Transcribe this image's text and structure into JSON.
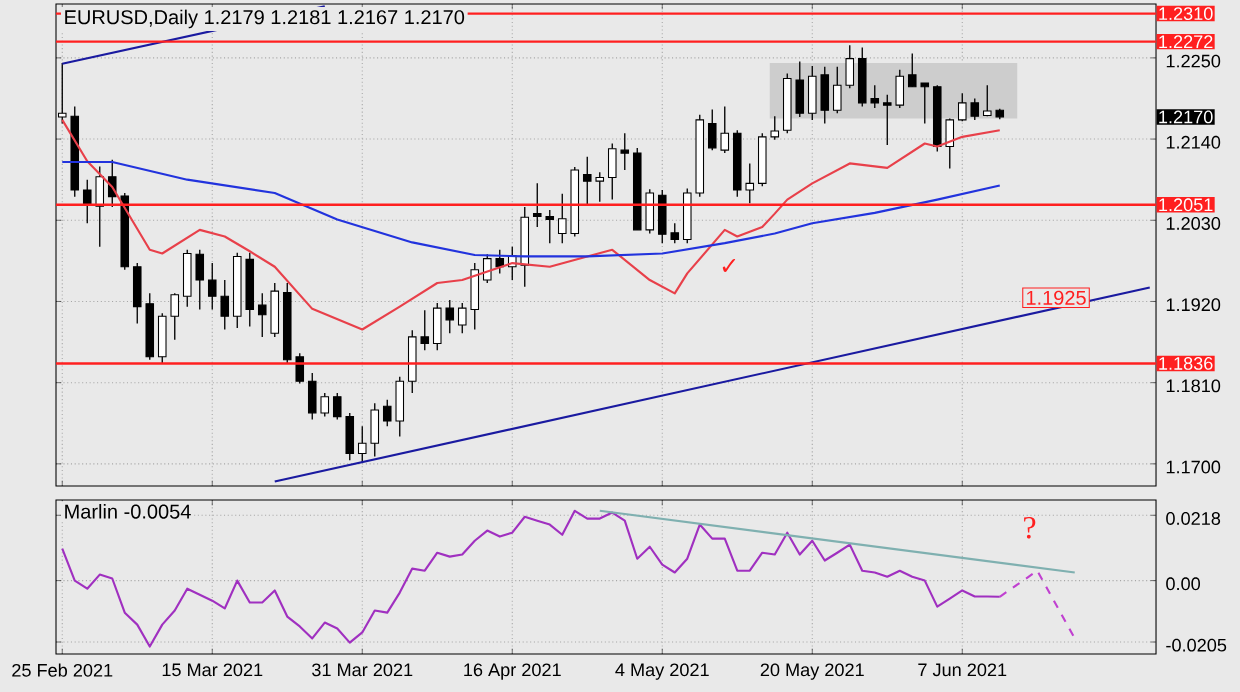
{
  "chart_data": [
    {
      "type": "candlestick",
      "title": "EURUSD,Daily  1.2179 1.2181 1.2167 1.2170",
      "categories": [
        null,
        null,
        null,
        null,
        null,
        null,
        null,
        null,
        null,
        null,
        null,
        null,
        null,
        null,
        null,
        null,
        null,
        null,
        null,
        null,
        null,
        null,
        null,
        null,
        null,
        null,
        null,
        null,
        null,
        null,
        null,
        null,
        null,
        null,
        null,
        null,
        null,
        null,
        null,
        null,
        null,
        null,
        null,
        null,
        null,
        null,
        null,
        null,
        null,
        null,
        null,
        null,
        null,
        null,
        null,
        null,
        null,
        null,
        null,
        null,
        null,
        null,
        null,
        null,
        null,
        null,
        null,
        null,
        null,
        null,
        null,
        null,
        null,
        null,
        null,
        null,
        null,
        null,
        null,
        null,
        null,
        null,
        null,
        null,
        null,
        null,
        null,
        null
      ],
      "ohlc": [
        [
          1.217,
          1.2243,
          1.2161,
          1.2175
        ],
        [
          1.2171,
          1.2184,
          1.2062,
          1.2071
        ],
        [
          1.2071,
          1.2085,
          1.2026,
          1.205
        ],
        [
          1.2049,
          1.2103,
          1.1994,
          1.2089
        ],
        [
          1.2089,
          1.2112,
          1.2048,
          1.2062
        ],
        [
          1.2063,
          1.2067,
          1.1963,
          1.1967
        ],
        [
          1.1967,
          1.1972,
          1.189,
          1.1913
        ],
        [
          1.1917,
          1.1931,
          1.1841,
          1.1845
        ],
        [
          1.1845,
          1.1904,
          1.1836,
          1.19
        ],
        [
          1.19,
          1.1931,
          1.1868,
          1.1929
        ],
        [
          1.1927,
          1.199,
          1.1913,
          1.1985
        ],
        [
          1.1984,
          1.199,
          1.1909,
          1.1949
        ],
        [
          1.1949,
          1.1972,
          1.1909,
          1.1927
        ],
        [
          1.1927,
          1.1949,
          1.1882,
          1.19
        ],
        [
          1.19,
          1.1986,
          1.1884,
          1.1981
        ],
        [
          1.1977,
          1.1986,
          1.1886,
          1.1909
        ],
        [
          1.1915,
          1.1931,
          1.1872,
          1.1902
        ],
        [
          1.1877,
          1.1945,
          1.1872,
          1.1934
        ],
        [
          1.1932,
          1.1945,
          1.1836,
          1.1841
        ],
        [
          1.1845,
          1.185,
          1.1809,
          1.1812
        ],
        [
          1.1812,
          1.1823,
          1.176,
          1.1769
        ],
        [
          1.1769,
          1.1796,
          1.1764,
          1.1791
        ],
        [
          1.1791,
          1.1796,
          1.176,
          1.1764
        ],
        [
          1.1764,
          1.1769,
          1.1705,
          1.1714
        ],
        [
          1.1714,
          1.1751,
          1.1701,
          1.1728
        ],
        [
          1.1728,
          1.1782,
          1.171,
          1.1773
        ],
        [
          1.1778,
          1.1787,
          1.1751,
          1.1758
        ],
        [
          1.1758,
          1.1818,
          1.1737,
          1.1812
        ],
        [
          1.1812,
          1.1881,
          1.1796,
          1.1872
        ],
        [
          1.1872,
          1.1908,
          1.1854,
          1.1863
        ],
        [
          1.1863,
          1.1918,
          1.1854,
          1.1911
        ],
        [
          1.1911,
          1.1922,
          1.1877,
          1.1895
        ],
        [
          1.1888,
          1.1918,
          1.1877,
          1.1911
        ],
        [
          1.1909,
          1.1972,
          1.1882,
          1.1963
        ],
        [
          1.1949,
          1.1984,
          1.1945,
          1.1978
        ],
        [
          1.1978,
          1.199,
          1.1958,
          1.1967
        ],
        [
          1.1967,
          1.1994,
          1.1949,
          1.1982
        ],
        [
          1.1969,
          1.2048,
          1.194,
          1.2034
        ],
        [
          1.2039,
          1.208,
          1.2021,
          1.2035
        ],
        [
          1.2035,
          1.2044,
          1.1999,
          1.2031
        ],
        [
          1.2012,
          1.2066,
          1.1999,
          1.2032
        ],
        [
          1.2012,
          1.2102,
          1.2008,
          1.2098
        ],
        [
          1.2092,
          1.2116,
          1.205,
          1.2083
        ],
        [
          1.2083,
          1.2095,
          1.2055,
          1.2088
        ],
        [
          1.2088,
          1.2134,
          1.2058,
          1.2127
        ],
        [
          1.2125,
          1.2148,
          1.2098,
          1.2121
        ],
        [
          1.2121,
          1.2128,
          1.2017,
          1.2017
        ],
        [
          1.2017,
          1.2072,
          1.2012,
          1.2067
        ],
        [
          1.2064,
          1.2071,
          1.1999,
          1.2011
        ],
        [
          1.2013,
          1.2026,
          1.1999,
          1.2004
        ],
        [
          1.2004,
          1.2073,
          1.1999,
          1.2067
        ],
        [
          1.2067,
          1.2173,
          1.2062,
          1.2166
        ],
        [
          1.2161,
          1.218,
          1.2125,
          1.2128
        ],
        [
          1.2125,
          1.2184,
          1.2121,
          1.2148
        ],
        [
          1.2148,
          1.2152,
          1.2062,
          1.2071
        ],
        [
          1.2071,
          1.2107,
          1.2053,
          1.208
        ],
        [
          1.208,
          1.2148,
          1.2076,
          1.2143
        ],
        [
          1.2143,
          1.2171,
          1.2139,
          1.2151
        ],
        [
          1.2152,
          1.2229,
          1.2148,
          1.2222
        ],
        [
          1.222,
          1.2245,
          1.217,
          1.2175
        ],
        [
          1.2175,
          1.2239,
          1.2166,
          1.2225
        ],
        [
          1.2227,
          1.2238,
          1.2161,
          1.2179
        ],
        [
          1.2179,
          1.2238,
          1.2175,
          1.2213
        ],
        [
          1.2213,
          1.2267,
          1.2209,
          1.2249
        ],
        [
          1.2249,
          1.2264,
          1.2184,
          1.2189
        ],
        [
          1.2195,
          1.2213,
          1.2182,
          1.2189
        ],
        [
          1.2189,
          1.22,
          1.2132,
          1.2186
        ],
        [
          1.2186,
          1.2234,
          1.2182,
          1.2225
        ],
        [
          1.2227,
          1.2256,
          1.2211,
          1.2211
        ],
        [
          1.2216,
          1.2216,
          1.2161,
          1.2211
        ],
        [
          1.2211,
          1.2213,
          1.2123,
          1.213
        ],
        [
          1.213,
          1.2168,
          1.21,
          1.2166
        ],
        [
          1.2166,
          1.2202,
          1.2164,
          1.2189
        ],
        [
          1.2189,
          1.2195,
          1.2166,
          1.2171
        ],
        [
          1.2172,
          1.2213,
          1.2171,
          1.2178
        ],
        [
          1.2179,
          1.2181,
          1.2167,
          1.217
        ],
        null,
        null,
        null,
        null,
        null,
        null,
        null,
        null,
        null,
        null,
        null,
        null
      ],
      "series": [
        {
          "type": "line",
          "color": "#e8404a",
          "values": [
            1.2166,
            null,
            1.211,
            null,
            1.2075,
            null,
            null,
            1.199,
            1.1985,
            null,
            null,
            1.2017,
            null,
            1.2008,
            null,
            1.1988,
            null,
            1.1967,
            null,
            null,
            1.191,
            null,
            null,
            null,
            1.1882,
            null,
            null,
            1.1913,
            null,
            null,
            1.1945,
            null,
            1.1949,
            null,
            null,
            null,
            1.1972,
            null,
            null,
            1.1967,
            null,
            null,
            1.1981,
            null,
            1.199,
            null,
            null,
            1.1949,
            null,
            1.1931,
            1.1958,
            null,
            null,
            1.2017,
            1.2008,
            null,
            1.2021,
            1.2039,
            1.2058,
            null,
            1.208,
            null,
            null,
            1.2107,
            null,
            null,
            1.2101,
            null,
            null,
            1.2134,
            1.213,
            null,
            1.2143,
            null,
            null,
            1.2152,
            null,
            null,
            null,
            null,
            null,
            null,
            null,
            null,
            null,
            null,
            null,
            null
          ]
        },
        {
          "type": "line",
          "color": "#2233dd",
          "values": [
            1.2109,
            null,
            null,
            null,
            1.2109,
            null,
            null,
            null,
            null,
            null,
            1.2085,
            null,
            null,
            null,
            null,
            null,
            null,
            1.2067,
            null,
            null,
            null,
            null,
            1.2031,
            null,
            null,
            null,
            null,
            null,
            1.2,
            null,
            null,
            null,
            null,
            1.1983,
            null,
            null,
            null,
            1.1981,
            null,
            null,
            null,
            null,
            1.1981,
            null,
            null,
            null,
            null,
            null,
            1.1985,
            null,
            null,
            null,
            null,
            1.1999,
            null,
            null,
            null,
            1.2012,
            null,
            null,
            1.2026,
            null,
            null,
            null,
            null,
            1.204,
            null,
            null,
            null,
            null,
            1.2058,
            null,
            null,
            null,
            null,
            1.2077,
            null,
            null,
            null,
            null,
            null,
            null,
            null,
            null,
            null,
            null,
            null,
            null
          ]
        },
        {
          "type": "line",
          "color": "#1a1aa0",
          "values": [
            null,
            null,
            null,
            null,
            null,
            null,
            null,
            null,
            null,
            null,
            null,
            null,
            null,
            null,
            null,
            null,
            null,
            1.1676,
            null,
            null,
            null,
            null,
            null,
            null,
            null,
            null,
            null,
            null,
            null,
            null,
            null,
            null,
            null,
            null,
            null,
            null,
            null,
            null,
            null,
            null,
            null,
            null,
            null,
            null,
            null,
            null,
            null,
            null,
            null,
            null,
            null,
            null,
            null,
            null,
            null,
            null,
            null,
            null,
            null,
            null,
            null,
            null,
            null,
            null,
            null,
            null,
            null,
            null,
            null,
            null,
            null,
            null,
            null,
            null,
            null,
            null,
            null,
            null,
            null,
            null,
            null,
            null,
            null,
            null,
            null,
            null,
            null,
            1.1939
          ]
        },
        {
          "type": "line",
          "color": "#1a1aa0",
          "values": [
            1.2242,
            null,
            null,
            null,
            null,
            null,
            null,
            null,
            null,
            null,
            null,
            null,
            null,
            null,
            null,
            null,
            null,
            null,
            null,
            null,
            null,
            1.232,
            null,
            null,
            null,
            null,
            null,
            null,
            null,
            null,
            null,
            null,
            null,
            null,
            null,
            null,
            null,
            null,
            null,
            null,
            null,
            null,
            null,
            null,
            null,
            null,
            null,
            null,
            null,
            null,
            null,
            null,
            null,
            null,
            null,
            null,
            null,
            null,
            null,
            null,
            null,
            null,
            null,
            null,
            null,
            null,
            null,
            null,
            null,
            null,
            null,
            null,
            null,
            null,
            null,
            null,
            null,
            null,
            null,
            null,
            null,
            null,
            null,
            null,
            null,
            null,
            null,
            null
          ]
        }
      ],
      "ylim": [
        1.167,
        1.2323
      ],
      "yticks": [
        {
          "value": 1.225,
          "label": "1.2250"
        },
        {
          "value": 1.214,
          "label": "1.2140"
        },
        {
          "value": 1.203,
          "label": "1.2030"
        },
        {
          "value": 1.192,
          "label": "1.1920"
        },
        {
          "value": 1.181,
          "label": "1.1810"
        },
        {
          "value": 1.17,
          "label": "1.1700"
        }
      ],
      "bands": [
        {
          "axis": "y",
          "from": 1.2168,
          "to": 1.2243,
          "color": "#cdcdcd"
        }
      ],
      "ref_lines": [
        {
          "axis": "y",
          "value": 1.231,
          "label": "1.2310",
          "color": "#ff2020"
        },
        {
          "axis": "y",
          "value": 1.2272,
          "label": "1.2272",
          "color": "#ff2020"
        },
        {
          "axis": "y",
          "value": 1.2051,
          "label": "1.2051",
          "color": "#ff2020"
        },
        {
          "axis": "y",
          "value": 1.1836,
          "label": "1.1836",
          "color": "#ff2020"
        }
      ],
      "annotations": [
        "1.2170",
        {
          "text": "1.1925",
          "y": 1.1925
        },
        "✓"
      ],
      "grid": true,
      "tick_labels": "y"
    },
    {
      "type": "line",
      "title": "Marlin -0.0054",
      "categories": [
        "25 Feb 2021",
        null,
        null,
        null,
        null,
        null,
        null,
        null,
        null,
        null,
        null,
        null,
        "15 Mar 2021",
        null,
        null,
        null,
        null,
        null,
        null,
        null,
        null,
        null,
        null,
        null,
        "31 Mar 2021",
        null,
        null,
        null,
        null,
        null,
        null,
        null,
        null,
        null,
        null,
        null,
        "16 Apr 2021",
        null,
        null,
        null,
        null,
        null,
        null,
        null,
        null,
        null,
        null,
        null,
        "4 May 2021",
        null,
        null,
        null,
        null,
        null,
        null,
        null,
        null,
        null,
        null,
        null,
        "20 May 2021",
        null,
        null,
        null,
        null,
        null,
        null,
        null,
        null,
        null,
        null,
        null,
        "7 Jun 2021",
        null,
        null,
        null,
        null,
        null,
        null,
        null,
        null,
        null,
        null,
        null,
        null,
        null,
        null,
        null
      ],
      "series": [
        {
          "color": "#a030c0",
          "values": [
            0.0107,
            0.0,
            -0.0027,
            0.002,
            0.0007,
            -0.0107,
            -0.0147,
            -0.022,
            -0.0147,
            -0.01,
            -0.0027,
            -0.0047,
            -0.0067,
            -0.0093,
            0.0,
            -0.0073,
            -0.0073,
            -0.0033,
            -0.012,
            -0.0153,
            -0.0193,
            -0.014,
            -0.016,
            -0.0207,
            -0.0173,
            -0.01,
            -0.0107,
            -0.004,
            0.004,
            0.0033,
            0.0093,
            0.008,
            0.0087,
            0.0133,
            0.0167,
            0.0147,
            0.016,
            0.0213,
            0.02,
            0.0187,
            0.0153,
            0.0233,
            0.0207,
            0.0207,
            0.0227,
            0.02,
            0.0073,
            0.0113,
            0.0053,
            0.0027,
            0.0073,
            0.0187,
            0.014,
            0.014,
            0.0033,
            0.0033,
            0.0093,
            0.0087,
            0.016,
            0.0087,
            0.0133,
            0.0067,
            0.0093,
            0.012,
            0.0033,
            0.0027,
            0.0013,
            0.0033,
            0.0013,
            0.0,
            -0.0087,
            -0.006,
            -0.0033,
            -0.0053,
            -0.0053,
            -0.0054,
            null,
            null,
            null,
            null,
            null,
            null,
            null,
            null,
            null,
            null,
            null,
            null
          ]
        },
        {
          "color": "#c040d0",
          "line_style": "dashed",
          "values": [
            null,
            null,
            null,
            null,
            null,
            null,
            null,
            null,
            null,
            null,
            null,
            null,
            null,
            null,
            null,
            null,
            null,
            null,
            null,
            null,
            null,
            null,
            null,
            null,
            null,
            null,
            null,
            null,
            null,
            null,
            null,
            null,
            null,
            null,
            null,
            null,
            null,
            null,
            null,
            null,
            null,
            null,
            null,
            null,
            null,
            null,
            null,
            null,
            null,
            null,
            null,
            null,
            null,
            null,
            null,
            null,
            null,
            null,
            null,
            null,
            null,
            null,
            null,
            null,
            null,
            null,
            null,
            null,
            null,
            null,
            null,
            null,
            null,
            null,
            null,
            -0.0054,
            null,
            null,
            0.0033,
            null,
            null,
            -0.0193,
            null,
            null,
            null,
            null,
            null,
            null
          ]
        },
        {
          "color": "#7fb0b0",
          "values": [
            null,
            null,
            null,
            null,
            null,
            null,
            null,
            null,
            null,
            null,
            null,
            null,
            null,
            null,
            null,
            null,
            null,
            null,
            null,
            null,
            null,
            null,
            null,
            null,
            null,
            null,
            null,
            null,
            null,
            null,
            null,
            null,
            null,
            null,
            null,
            null,
            null,
            null,
            null,
            null,
            null,
            null,
            null,
            0.0233,
            null,
            null,
            null,
            null,
            null,
            null,
            null,
            null,
            null,
            null,
            null,
            null,
            null,
            null,
            null,
            null,
            null,
            null,
            null,
            null,
            null,
            null,
            null,
            null,
            null,
            null,
            null,
            null,
            null,
            null,
            null,
            null,
            null,
            null,
            null,
            null,
            null,
            0.0027,
            null,
            null,
            null,
            null,
            null,
            null
          ]
        }
      ],
      "ylim": [
        -0.0245,
        0.0269
      ],
      "yticks": [
        0.0218,
        {
          "value": 0,
          "label": "0.00"
        },
        -0.0205
      ],
      "annotations": [
        "?"
      ],
      "grid": true
    }
  ]
}
